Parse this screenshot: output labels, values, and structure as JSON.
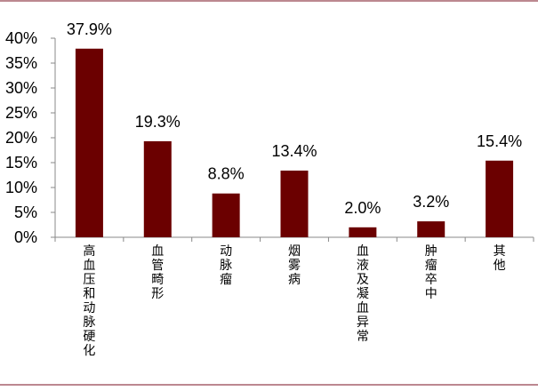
{
  "chart_data": {
    "type": "bar",
    "categories": [
      "高血压和动脉硬化",
      "血管畸形",
      "动脉瘤",
      "烟雾病",
      "血液及凝血异常",
      "肿瘤卒中",
      "其他"
    ],
    "values": [
      37.9,
      19.3,
      8.8,
      13.4,
      2.0,
      3.2,
      15.4
    ],
    "data_labels": [
      "37.9%",
      "19.3%",
      "8.8%",
      "13.4%",
      "2.0%",
      "3.2%",
      "15.4%"
    ],
    "y_ticks": [
      0,
      5,
      10,
      15,
      20,
      25,
      30,
      35,
      40
    ],
    "y_tick_labels": [
      "0%",
      "5%",
      "10%",
      "15%",
      "20%",
      "25%",
      "30%",
      "35%",
      "40%"
    ],
    "ylim": [
      0,
      40
    ],
    "title": "",
    "xlabel": "",
    "ylabel": "",
    "grid": false,
    "legend": "none",
    "bar_color": "#6b0000",
    "frame_color": "#7a1020"
  }
}
